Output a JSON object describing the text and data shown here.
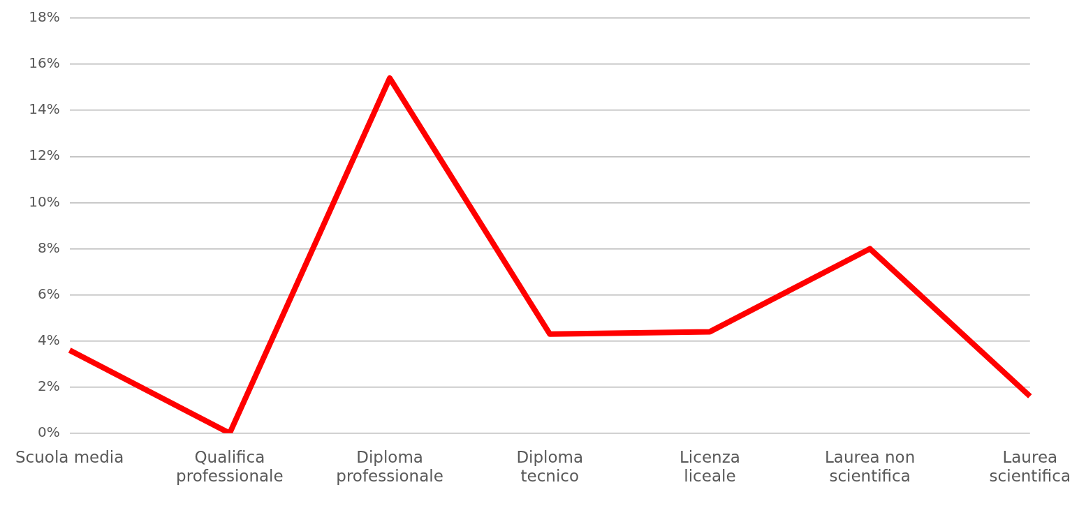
{
  "chart_data": {
    "type": "line",
    "categories": [
      "Scuola media",
      "Qualifica\nprofessionale",
      "Diploma\nprofessionale",
      "Diploma\ntecnico",
      "Licenza\nliceale",
      "Laurea non\nscientifica",
      "Laurea\nscientifica"
    ],
    "series": [
      {
        "color": "#ff0000",
        "values": [
          3.6,
          0,
          15.4,
          4.3,
          4.4,
          8.0,
          1.6
        ]
      }
    ],
    "ylim": [
      0,
      18
    ],
    "yticks": [
      {
        "value": 0,
        "label": "0%"
      },
      {
        "value": 2,
        "label": "2%"
      },
      {
        "value": 4,
        "label": "4%"
      },
      {
        "value": 6,
        "label": "6%"
      },
      {
        "value": 8,
        "label": "8%"
      },
      {
        "value": 10,
        "label": "10%"
      },
      {
        "value": 12,
        "label": "12%"
      },
      {
        "value": 14,
        "label": "14%"
      },
      {
        "value": 16,
        "label": "16%"
      },
      {
        "value": 18,
        "label": "18%"
      }
    ],
    "grid": "y",
    "legend": false,
    "marker": "none",
    "line_style": "solid"
  }
}
